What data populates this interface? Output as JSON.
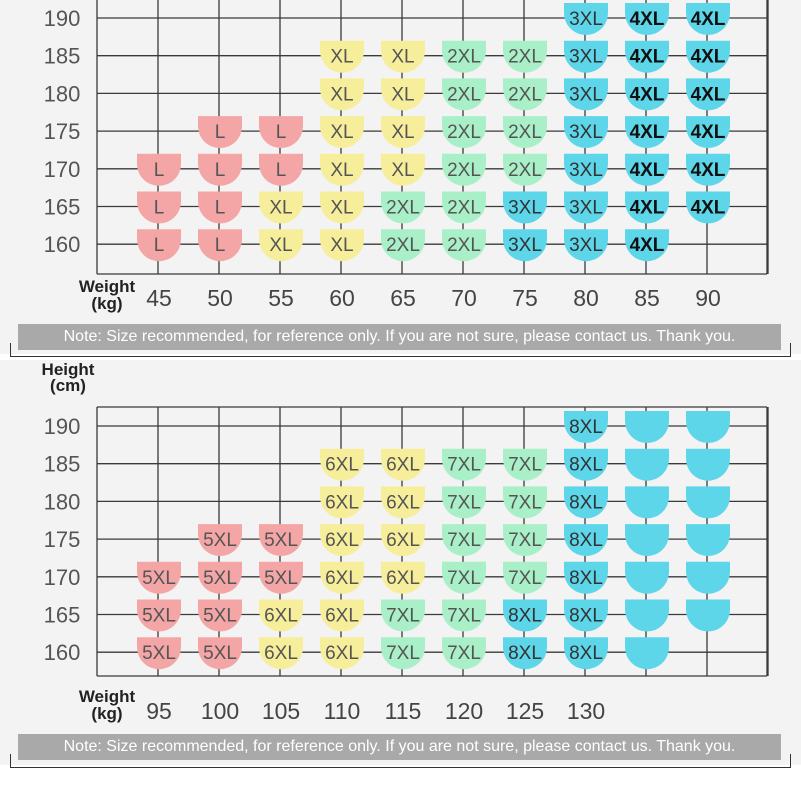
{
  "colors": {
    "L": "#f4a6a6",
    "XL": "#f7ee9c",
    "2XL": "#a9f0c9",
    "3XL": "#5dd6ea",
    "4XL": "#5dd6ea",
    "5XL": "#f4a6a6",
    "6XL": "#f7ee9c",
    "7XL": "#a9f0c9",
    "8XL": "#5dd6ea",
    "blank": "#5dd6ea"
  },
  "chart_data": [
    {
      "type": "table",
      "xlabel": "Weight\n(kg)",
      "ylabel": "",
      "x": [
        45,
        50,
        55,
        60,
        65,
        70,
        75,
        80,
        85,
        90
      ],
      "y": [
        190,
        185,
        180,
        175,
        170,
        165,
        160
      ],
      "cells": [
        [
          "",
          "",
          "",
          "",
          "",
          "",
          "",
          "3XL",
          "4XL",
          "4XL"
        ],
        [
          "",
          "",
          "",
          "XL",
          "XL",
          "2XL",
          "2XL",
          "3XL",
          "4XL",
          "4XL"
        ],
        [
          "",
          "",
          "",
          "XL",
          "XL",
          "2XL",
          "2XL",
          "3XL",
          "4XL",
          "4XL"
        ],
        [
          "",
          "L",
          "L",
          "XL",
          "XL",
          "2XL",
          "2XL",
          "3XL",
          "4XL",
          "4XL"
        ],
        [
          "L",
          "L",
          "L",
          "XL",
          "XL",
          "2XL",
          "2XL",
          "3XL",
          "4XL",
          "4XL"
        ],
        [
          "L",
          "L",
          "XL",
          "XL",
          "2XL",
          "2XL",
          "3XL",
          "3XL",
          "4XL",
          "4XL"
        ],
        [
          "L",
          "L",
          "XL",
          "XL",
          "2XL",
          "2XL",
          "3XL",
          "3XL",
          "4XL",
          ""
        ]
      ],
      "note": "Note: Size recommended, for reference only. If you are not sure, please contact us. Thank you."
    },
    {
      "type": "table",
      "xlabel": "Weight\n(kg)",
      "ylabel": "Height\n(cm)",
      "x": [
        95,
        100,
        105,
        110,
        115,
        120,
        125,
        130,
        "",
        ""
      ],
      "y": [
        190,
        185,
        180,
        175,
        170,
        165,
        160
      ],
      "cells": [
        [
          "",
          "",
          "",
          "",
          "",
          "",
          "",
          "8XL",
          "blank",
          "blank"
        ],
        [
          "",
          "",
          "",
          "6XL",
          "6XL",
          "7XL",
          "7XL",
          "8XL",
          "blank",
          "blank"
        ],
        [
          "",
          "",
          "",
          "6XL",
          "6XL",
          "7XL",
          "7XL",
          "8XL",
          "blank",
          "blank"
        ],
        [
          "",
          "5XL",
          "5XL",
          "6XL",
          "6XL",
          "7XL",
          "7XL",
          "8XL",
          "blank",
          "blank"
        ],
        [
          "5XL",
          "5XL",
          "5XL",
          "6XL",
          "6XL",
          "7XL",
          "7XL",
          "8XL",
          "blank",
          "blank"
        ],
        [
          "5XL",
          "5XL",
          "6XL",
          "6XL",
          "7XL",
          "7XL",
          "8XL",
          "8XL",
          "blank",
          "blank"
        ],
        [
          "5XL",
          "5XL",
          "6XL",
          "6XL",
          "7XL",
          "7XL",
          "8XL",
          "8XL",
          "blank",
          ""
        ]
      ],
      "note": "Note: Size recommended, for reference only. If you are not sure, please contact us. Thank you."
    }
  ]
}
